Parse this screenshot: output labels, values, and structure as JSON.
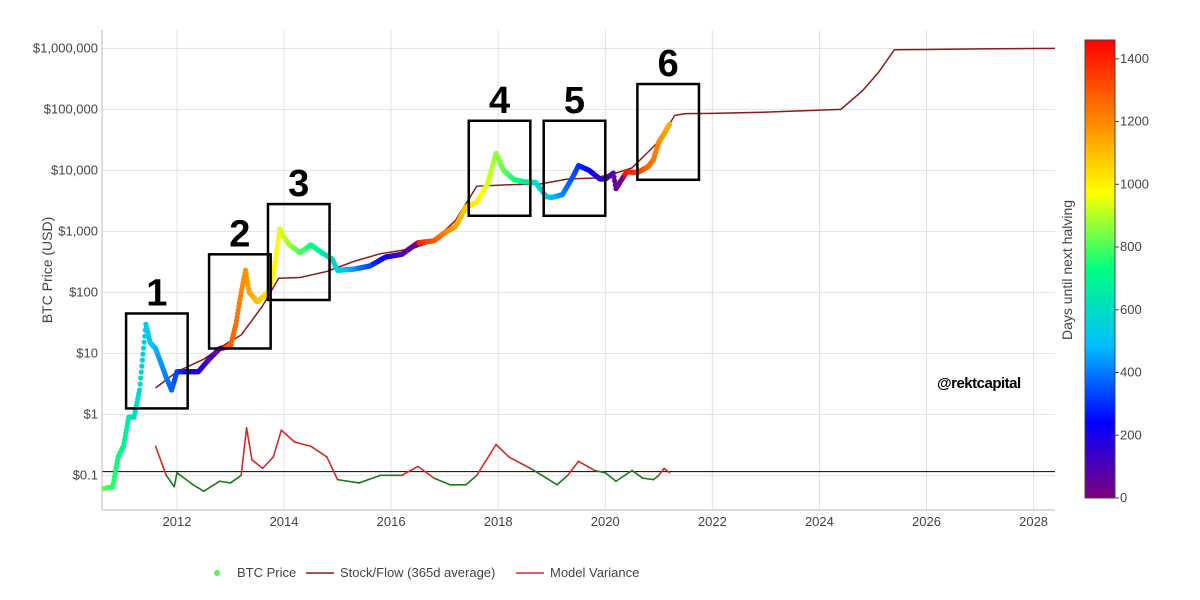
{
  "chart_data": {
    "type": "line",
    "title": "",
    "xlabel": "",
    "ylabel": "BTC Price (USD)",
    "y_scale": "log",
    "xlim": [
      2010.6,
      2028.4
    ],
    "ylim": [
      0.027,
      2000000
    ],
    "x_ticks": [
      2012,
      2014,
      2016,
      2018,
      2020,
      2022,
      2024,
      2026,
      2028
    ],
    "y_ticks": [
      {
        "value": 0.1,
        "label": "$0.1"
      },
      {
        "value": 1,
        "label": "$1"
      },
      {
        "value": 10,
        "label": "$10"
      },
      {
        "value": 100,
        "label": "$100"
      },
      {
        "value": 1000,
        "label": "$1,000"
      },
      {
        "value": 10000,
        "label": "$10,000"
      },
      {
        "value": 100000,
        "label": "$100,000"
      },
      {
        "value": 1000000,
        "label": "$1,000,000"
      }
    ],
    "grid": true,
    "colorbar": {
      "title": "Days until next halving",
      "min": 0,
      "max": 1460,
      "ticks": [
        0,
        200,
        400,
        600,
        800,
        1000,
        1200,
        1400
      ],
      "colors": [
        "#800080",
        "#0000ff",
        "#00bfff",
        "#00ff80",
        "#ffff00",
        "#ff8000",
        "#ff0000"
      ]
    },
    "series": [
      {
        "name": "BTC Price",
        "kind": "scatter",
        "points": [
          [
            2010.6,
            0.06
          ],
          [
            2010.8,
            0.065
          ],
          [
            2010.9,
            0.2
          ],
          [
            2011.0,
            0.3
          ],
          [
            2011.1,
            0.9
          ],
          [
            2011.2,
            0.9
          ],
          [
            2011.3,
            2.5
          ],
          [
            2011.42,
            30
          ],
          [
            2011.5,
            15
          ],
          [
            2011.6,
            12
          ],
          [
            2011.7,
            7
          ],
          [
            2011.8,
            4
          ],
          [
            2011.9,
            2.5
          ],
          [
            2012.0,
            5
          ],
          [
            2012.2,
            5
          ],
          [
            2012.4,
            5
          ],
          [
            2012.6,
            8
          ],
          [
            2012.8,
            12
          ],
          [
            2013.0,
            13
          ],
          [
            2013.1,
            30
          ],
          [
            2013.2,
            100
          ],
          [
            2013.28,
            230
          ],
          [
            2013.35,
            100
          ],
          [
            2013.5,
            70
          ],
          [
            2013.7,
            100
          ],
          [
            2013.8,
            200
          ],
          [
            2013.92,
            1100
          ],
          [
            2014.0,
            800
          ],
          [
            2014.1,
            600
          ],
          [
            2014.3,
            450
          ],
          [
            2014.5,
            600
          ],
          [
            2014.7,
            450
          ],
          [
            2014.9,
            350
          ],
          [
            2015.0,
            230
          ],
          [
            2015.3,
            240
          ],
          [
            2015.6,
            270
          ],
          [
            2015.9,
            380
          ],
          [
            2016.2,
            420
          ],
          [
            2016.5,
            650
          ],
          [
            2016.8,
            700
          ],
          [
            2017.0,
            950
          ],
          [
            2017.2,
            1200
          ],
          [
            2017.4,
            2500
          ],
          [
            2017.6,
            3000
          ],
          [
            2017.8,
            6000
          ],
          [
            2017.96,
            19000
          ],
          [
            2018.1,
            10000
          ],
          [
            2018.3,
            7000
          ],
          [
            2018.5,
            6500
          ],
          [
            2018.7,
            6300
          ],
          [
            2018.9,
            3700
          ],
          [
            2019.0,
            3600
          ],
          [
            2019.2,
            4000
          ],
          [
            2019.4,
            8000
          ],
          [
            2019.5,
            12000
          ],
          [
            2019.7,
            10000
          ],
          [
            2019.9,
            7200
          ],
          [
            2020.0,
            7200
          ],
          [
            2020.15,
            9000
          ],
          [
            2020.2,
            5000
          ],
          [
            2020.4,
            9500
          ],
          [
            2020.6,
            9200
          ],
          [
            2020.8,
            11500
          ],
          [
            2020.9,
            15000
          ],
          [
            2021.0,
            29000
          ],
          [
            2021.1,
            40000
          ],
          [
            2021.2,
            57000
          ]
        ]
      },
      {
        "name": "Stock/Flow (365d average)",
        "kind": "line",
        "color": "#8b1a1a",
        "points": [
          [
            2011.6,
            2.7
          ],
          [
            2012.0,
            5
          ],
          [
            2012.5,
            8
          ],
          [
            2012.9,
            14
          ],
          [
            2013.2,
            20
          ],
          [
            2013.6,
            60
          ],
          [
            2013.9,
            170
          ],
          [
            2014.3,
            175
          ],
          [
            2014.8,
            220
          ],
          [
            2015.3,
            320
          ],
          [
            2015.8,
            430
          ],
          [
            2016.4,
            520
          ],
          [
            2016.8,
            700
          ],
          [
            2017.2,
            1500
          ],
          [
            2017.6,
            5500
          ],
          [
            2018.2,
            5800
          ],
          [
            2018.8,
            6000
          ],
          [
            2019.3,
            7200
          ],
          [
            2019.8,
            7500
          ],
          [
            2020.2,
            9000
          ],
          [
            2020.5,
            11000
          ],
          [
            2020.8,
            20000
          ],
          [
            2021.0,
            30000
          ],
          [
            2021.3,
            80000
          ],
          [
            2021.5,
            85000
          ],
          [
            2022.0,
            86000
          ],
          [
            2023.0,
            90000
          ],
          [
            2024.4,
            100000
          ],
          [
            2024.8,
            200000
          ],
          [
            2025.1,
            400000
          ],
          [
            2025.4,
            950000
          ],
          [
            2026.0,
            960000
          ],
          [
            2027.0,
            980000
          ],
          [
            2028.4,
            1000000
          ]
        ]
      },
      {
        "name": "Model Variance",
        "kind": "line",
        "color": "#d62728",
        "color_below": "#1a7a1a",
        "points": [
          [
            2011.6,
            0.3
          ],
          [
            2011.8,
            0.1
          ],
          [
            2011.95,
            0.065
          ],
          [
            2012.0,
            0.11
          ],
          [
            2012.3,
            0.07
          ],
          [
            2012.5,
            0.055
          ],
          [
            2012.8,
            0.08
          ],
          [
            2013.0,
            0.075
          ],
          [
            2013.2,
            0.1
          ],
          [
            2013.3,
            0.6
          ],
          [
            2013.4,
            0.18
          ],
          [
            2013.6,
            0.13
          ],
          [
            2013.8,
            0.2
          ],
          [
            2013.95,
            0.55
          ],
          [
            2014.2,
            0.35
          ],
          [
            2014.5,
            0.3
          ],
          [
            2014.8,
            0.2
          ],
          [
            2015.0,
            0.085
          ],
          [
            2015.4,
            0.075
          ],
          [
            2015.8,
            0.1
          ],
          [
            2016.2,
            0.1
          ],
          [
            2016.5,
            0.14
          ],
          [
            2016.8,
            0.09
          ],
          [
            2017.1,
            0.07
          ],
          [
            2017.4,
            0.07
          ],
          [
            2017.6,
            0.1
          ],
          [
            2017.96,
            0.32
          ],
          [
            2018.2,
            0.2
          ],
          [
            2018.6,
            0.13
          ],
          [
            2018.9,
            0.09
          ],
          [
            2019.1,
            0.07
          ],
          [
            2019.3,
            0.1
          ],
          [
            2019.5,
            0.17
          ],
          [
            2019.8,
            0.12
          ],
          [
            2020.0,
            0.11
          ],
          [
            2020.2,
            0.08
          ],
          [
            2020.5,
            0.12
          ],
          [
            2020.7,
            0.09
          ],
          [
            2020.9,
            0.085
          ],
          [
            2021.0,
            0.1
          ],
          [
            2021.1,
            0.13
          ],
          [
            2021.2,
            0.11
          ]
        ]
      },
      {
        "name": "",
        "kind": "reference-line",
        "color": "#000000",
        "y": 0.115
      }
    ],
    "boxes": [
      {
        "label": "1",
        "x0": 2011.05,
        "x1": 2012.2,
        "y0": 1.25,
        "y1": 45
      },
      {
        "label": "2",
        "x0": 2012.6,
        "x1": 2013.75,
        "y0": 12,
        "y1": 420
      },
      {
        "label": "3",
        "x0": 2013.7,
        "x1": 2014.85,
        "y0": 75,
        "y1": 2800
      },
      {
        "label": "4",
        "x0": 2017.45,
        "x1": 2018.6,
        "y0": 1800,
        "y1": 65000
      },
      {
        "label": "5",
        "x0": 2018.85,
        "x1": 2020.0,
        "y0": 1800,
        "y1": 65000
      },
      {
        "label": "6",
        "x0": 2020.6,
        "x1": 2021.75,
        "y0": 7000,
        "y1": 260000
      }
    ],
    "watermark": "@rektcapital",
    "legend_position": "bottom-center",
    "legend": [
      "BTC Price",
      "Stock/Flow (365d average)",
      "Model Variance"
    ]
  }
}
